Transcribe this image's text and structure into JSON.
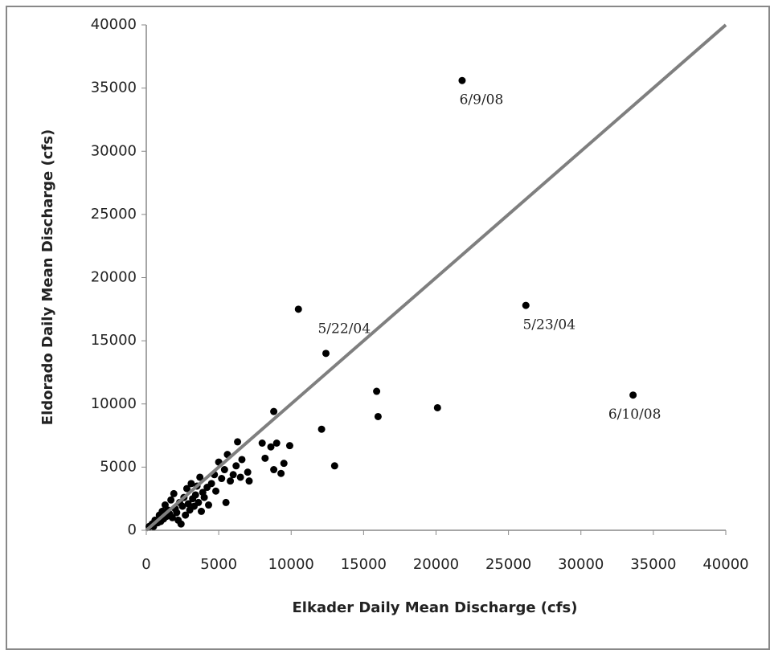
{
  "chart_data": {
    "type": "scatter",
    "x_label": "Elkader Daily Mean Discharge (cfs)",
    "y_label": "Eldorado Daily Mean Discharge (cfs)",
    "color": "#000000",
    "x": [
      200,
      400,
      500,
      600,
      800,
      900,
      1000,
      1100,
      1200,
      1300,
      1400,
      1500,
      1600,
      1700,
      1800,
      1900,
      2000,
      2100,
      2200,
      2300,
      2400,
      2500,
      2600,
      2700,
      2800,
      2900,
      3000,
      3100,
      3200,
      3300,
      3400,
      3500,
      3600,
      3700,
      3800,
      3900,
      4000,
      4200,
      4300,
      4500,
      4700,
      4800,
      5000,
      5200,
      5400,
      5500,
      5600,
      5800,
      6000,
      6200,
      6300,
      6500,
      6600,
      7000,
      7100,
      8000,
      8200,
      8600,
      8800,
      8800,
      9000,
      9300,
      9500,
      9900,
      10500,
      12100,
      12400,
      13000,
      15900,
      16000,
      20100,
      21800,
      26200,
      33600
    ],
    "values": [
      300,
      500,
      300,
      800,
      600,
      1200,
      700,
      1500,
      900,
      2000,
      1100,
      1600,
      1300,
      2400,
      1000,
      2900,
      1700,
      1400,
      800,
      2200,
      500,
      1900,
      2600,
      1200,
      3300,
      2100,
      1600,
      3700,
      2500,
      1900,
      2800,
      3500,
      2200,
      4200,
      1500,
      3000,
      2600,
      3400,
      2000,
      3700,
      4400,
      3100,
      5400,
      4100,
      4800,
      2200,
      6000,
      3900,
      4400,
      5100,
      7000,
      4200,
      5600,
      4600,
      3900,
      6900,
      5700,
      6600,
      4800,
      9400,
      6900,
      4500,
      5300,
      6700,
      17500,
      8000,
      14000,
      5100,
      11000,
      9000,
      9700,
      35600,
      17800,
      10700
    ],
    "annotations": [
      {
        "text": "6/9/08",
        "x": 21800,
        "y": 35600
      },
      {
        "text": "5/22/04",
        "x": 10500,
        "y": 17500
      },
      {
        "text": "5/23/04",
        "x": 26200,
        "y": 17800
      },
      {
        "text": "6/10/08",
        "x": 33600,
        "y": 10700
      }
    ],
    "reference_line": {
      "x": [
        0,
        40000
      ],
      "values": [
        0,
        40000
      ],
      "color": "#7f7f7f"
    },
    "xlim": [
      0,
      40000
    ],
    "ylim": [
      0,
      40000
    ],
    "xticks": [
      0,
      5000,
      10000,
      15000,
      20000,
      25000,
      30000,
      35000,
      40000
    ],
    "yticks": [
      0,
      5000,
      10000,
      15000,
      20000,
      25000,
      30000,
      35000,
      40000
    ]
  }
}
